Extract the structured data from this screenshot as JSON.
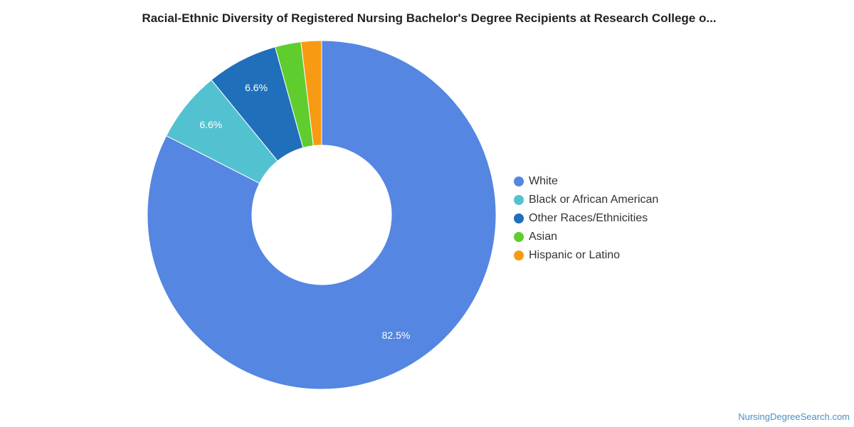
{
  "chart_data": {
    "type": "pie",
    "title": "Racial-Ethnic Diversity of Registered Nursing Bachelor's Degree Recipients at Research College o...",
    "series": [
      {
        "name": "White",
        "value": 82.5,
        "label": "82.5%",
        "color": "#5486e2"
      },
      {
        "name": "Black or African American",
        "value": 6.6,
        "label": "6.6%",
        "color": "#52c2d0"
      },
      {
        "name": "Other Races/Ethnicities",
        "value": 6.6,
        "label": "6.6%",
        "color": "#1f6fba"
      },
      {
        "name": "Asian",
        "value": 2.4,
        "label": "",
        "color": "#5fcd2e"
      },
      {
        "name": "Hispanic or Latino",
        "value": 1.9,
        "label": "",
        "color": "#f89a12"
      }
    ],
    "legend_position": "right"
  },
  "credit": "NursingDegreeSearch.com"
}
